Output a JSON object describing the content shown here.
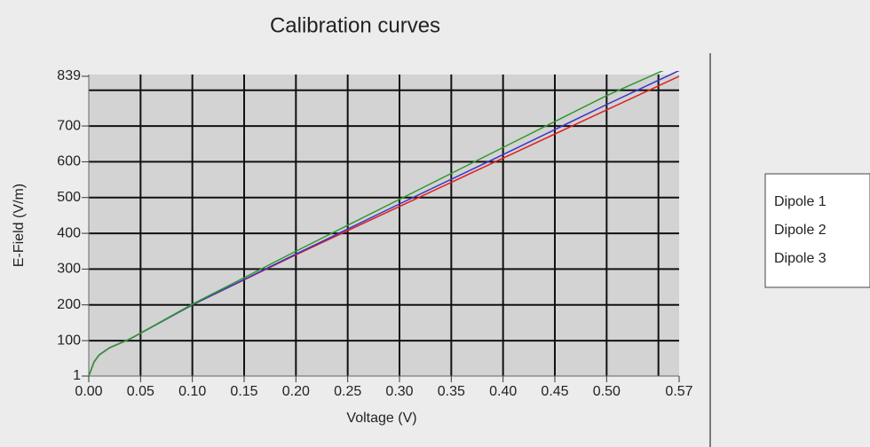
{
  "chart_data": {
    "type": "line",
    "title": "Calibration curves",
    "x_label": "Voltage (V)",
    "y_label": "E-Field (V/m)",
    "x": [
      0,
      0.005,
      0.01,
      0.02,
      0.04,
      0.1,
      0.2,
      0.3,
      0.4,
      0.5,
      0.57
    ],
    "series": [
      {
        "name": "Dipole 1",
        "color": "#e0201c",
        "values": [
          1,
          40,
          60,
          80,
          105,
          200,
          340,
          475,
          610,
          745,
          839
        ]
      },
      {
        "name": "Dipole 2",
        "color": "#3a34c8",
        "values": [
          1,
          40,
          60,
          80,
          105,
          200,
          342,
          482,
          620,
          760,
          855
        ]
      },
      {
        "name": "Dipole 3",
        "color": "#2e9a2e",
        "values": [
          1,
          40,
          60,
          80,
          105,
          202,
          350,
          495,
          640,
          785,
          875
        ]
      }
    ],
    "xlim": [
      0,
      0.57
    ],
    "ylim": [
      1,
      839
    ],
    "xticks": [
      {
        "value": 0,
        "label": "0.00"
      },
      {
        "value": 0.05,
        "label": "0.05"
      },
      {
        "value": 0.1,
        "label": "0.10"
      },
      {
        "value": 0.15,
        "label": "0.15"
      },
      {
        "value": 0.2,
        "label": "0.20"
      },
      {
        "value": 0.25,
        "label": "0.25"
      },
      {
        "value": 0.3,
        "label": "0.30"
      },
      {
        "value": 0.35,
        "label": "0.35"
      },
      {
        "value": 0.4,
        "label": "0.40"
      },
      {
        "value": 0.45,
        "label": "0.45"
      },
      {
        "value": 0.5,
        "label": "0.50"
      },
      {
        "value": 0.57,
        "label": "0.57"
      }
    ],
    "yticks": [
      1,
      100,
      200,
      300,
      400,
      500,
      600,
      700,
      839
    ],
    "xgrid": [
      0.05,
      0.1,
      0.15,
      0.2,
      0.25,
      0.3,
      0.35,
      0.4,
      0.45,
      0.5,
      0.55
    ],
    "ygrid": [
      100,
      200,
      300,
      400,
      500,
      600,
      700,
      800
    ],
    "grid": true,
    "legend": "right"
  }
}
